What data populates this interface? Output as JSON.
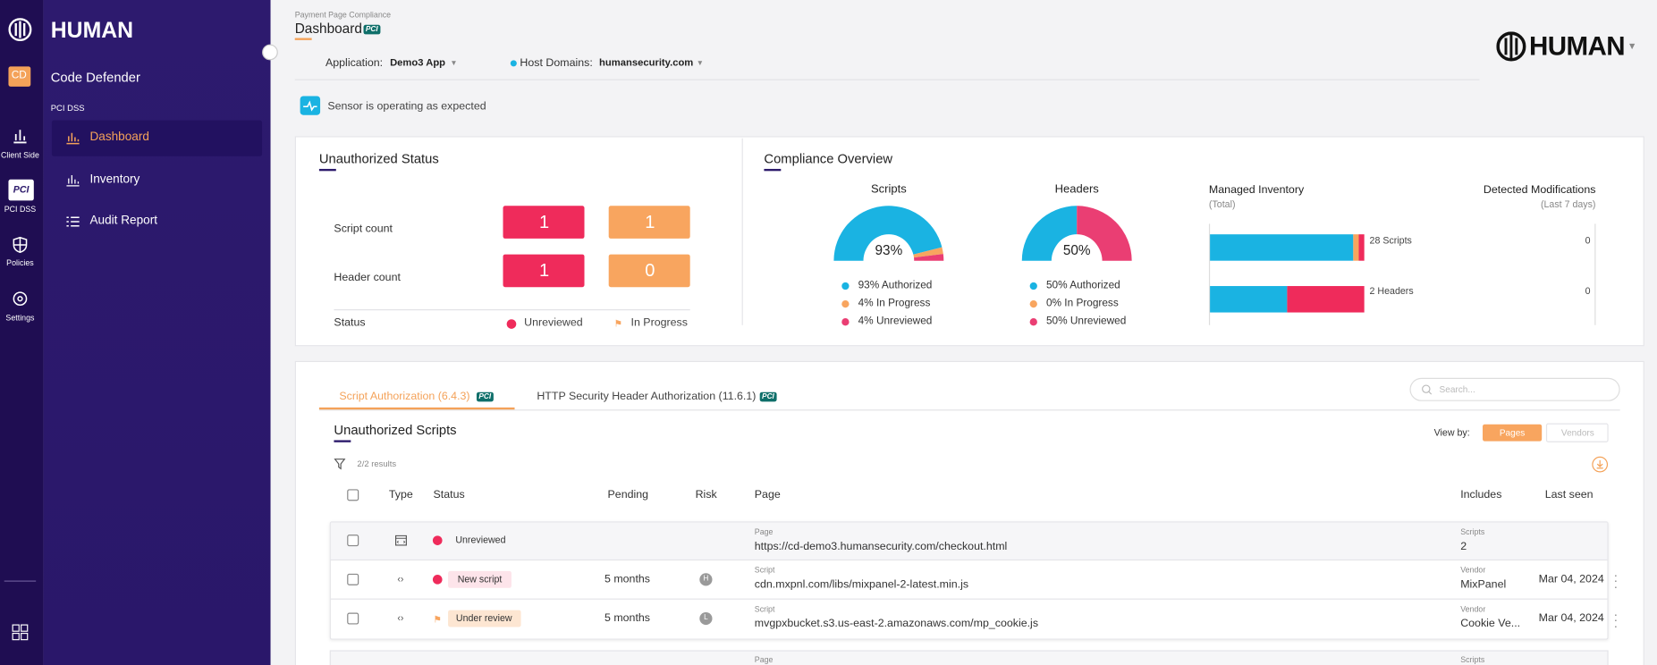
{
  "sidebar": {
    "rail": [
      "Client Side",
      "PCI DSS",
      "Policies",
      "Settings"
    ],
    "badge": "CD",
    "brand": "HUMAN",
    "product": "Code Defender",
    "section": "PCI DSS",
    "menu": [
      "Dashboard",
      "Inventory",
      "Audit Report"
    ]
  },
  "header": {
    "breadcrumb": "Payment Page Compliance",
    "title": "Dashboard",
    "badge": "PCI",
    "application_label": "Application:",
    "application": "Demo3 App",
    "domains_label": "Host Domains:",
    "domains": "humansecurity.com",
    "logo": "HUMAN"
  },
  "sensor": "Sensor is operating as expected",
  "unauthorized_status": {
    "title": "Unauthorized Status",
    "rows": [
      {
        "label": "Script count",
        "unreviewed": 1,
        "in_progress": 1
      },
      {
        "label": "Header count",
        "unreviewed": 1,
        "in_progress": 0
      }
    ],
    "status_label": "Status",
    "legend": [
      "Unreviewed",
      "In Progress"
    ]
  },
  "compliance": {
    "title": "Compliance Overview",
    "donuts": [
      {
        "title": "Scripts",
        "center": "93%",
        "segments": [
          {
            "label": "93% Authorized",
            "value": 93,
            "color": "#1ab3e2"
          },
          {
            "label": "4% In Progress",
            "value": 4,
            "color": "#f8a55f"
          },
          {
            "label": "4% Unreviewed",
            "value": 4,
            "color": "#ea3e73"
          }
        ]
      },
      {
        "title": "Headers",
        "center": "50%",
        "segments": [
          {
            "label": "50% Authorized",
            "value": 50,
            "color": "#1ab3e2"
          },
          {
            "label": "0% In Progress",
            "value": 0,
            "color": "#f8a55f"
          },
          {
            "label": "50% Unreviewed",
            "value": 50,
            "color": "#ea3e73"
          }
        ]
      }
    ],
    "inventory": {
      "title": "Managed Inventory",
      "subtitle": "(Total)",
      "colors": [
        "#1ab3e2",
        "#f8a55f",
        "#ef2b5b"
      ],
      "bars": [
        {
          "label": "28 Scripts",
          "values": [
            26,
            1,
            1
          ]
        },
        {
          "label": "2 Headers",
          "values": [
            1,
            0,
            1
          ]
        }
      ]
    },
    "modifications": {
      "title": "Detected Modifications",
      "subtitle": "(Last 7 days)",
      "values": [
        0,
        0
      ]
    }
  },
  "tabs": [
    {
      "label": "Script Authorization (6.4.3)",
      "badge": "PCI"
    },
    {
      "label": "HTTP Security Header Authorization (11.6.1)",
      "badge": "PCI"
    }
  ],
  "search": "Search...",
  "scripts": {
    "title": "Unauthorized Scripts",
    "view_by": "View by:",
    "views": [
      "Pages",
      "Vendors"
    ],
    "results": "2/2 results",
    "columns": [
      "Type",
      "Status",
      "Pending",
      "Risk",
      "Page",
      "Includes",
      "Last seen"
    ],
    "rows": [
      {
        "status": "Unreviewed",
        "page_label": "Page",
        "page": "https://cd-demo3.humansecurity.com/checkout.html",
        "includes_label": "Scripts",
        "includes": "2"
      },
      {
        "status": "New script",
        "pending": "5 months",
        "risk": "H",
        "page_label": "Script",
        "page": "cdn.mxpnl.com/libs/mixpanel-2-latest.min.js",
        "includes_label": "Vendor",
        "includes": "MixPanel",
        "last_seen": "Mar 04, 2024"
      },
      {
        "status": "Under review",
        "pending": "5 months",
        "risk": "L",
        "page_label": "Script",
        "page": "mvgpxbucket.s3.us-east-2.amazonaws.com/mp_cookie.js",
        "includes_label": "Vendor",
        "includes": "Cookie Ve...",
        "last_seen": "Mar 04, 2024"
      },
      {
        "page_label": "Page",
        "includes_label": "Scripts"
      }
    ]
  }
}
